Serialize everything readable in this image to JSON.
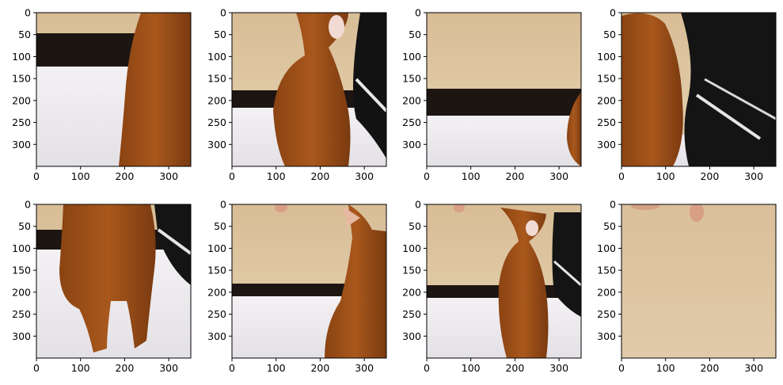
{
  "figure": {
    "rows": 2,
    "cols": 4,
    "x_ticks": [
      "0",
      "100",
      "200",
      "300"
    ],
    "y_ticks": [
      "0",
      "50",
      "100",
      "150",
      "200",
      "250",
      "300"
    ],
    "panels": [
      {
        "content": "cat-body-closeup",
        "description": "crop of cat body against white sheet and beige wall"
      },
      {
        "content": "cat-sitting-meowing",
        "description": "cat sitting with mouth open, black bag on right"
      },
      {
        "content": "wall-and-sheet",
        "description": "mostly beige wall, dark band, white sheet, tip of cat at right"
      },
      {
        "content": "cat-and-black-bag",
        "description": "cat body on left, black bag with white stripes on right"
      },
      {
        "content": "cat-legs-closeup",
        "description": "cat legs and paws on white sheet, bag at top right"
      },
      {
        "content": "cat-head-right",
        "description": "cat sitting at right edge, finger at top"
      },
      {
        "content": "cat-full-meowing",
        "description": "full cat meowing, finger at top, bag on right"
      },
      {
        "content": "beige-wall-finger",
        "description": "plain beige wall with fingers at top"
      }
    ]
  }
}
